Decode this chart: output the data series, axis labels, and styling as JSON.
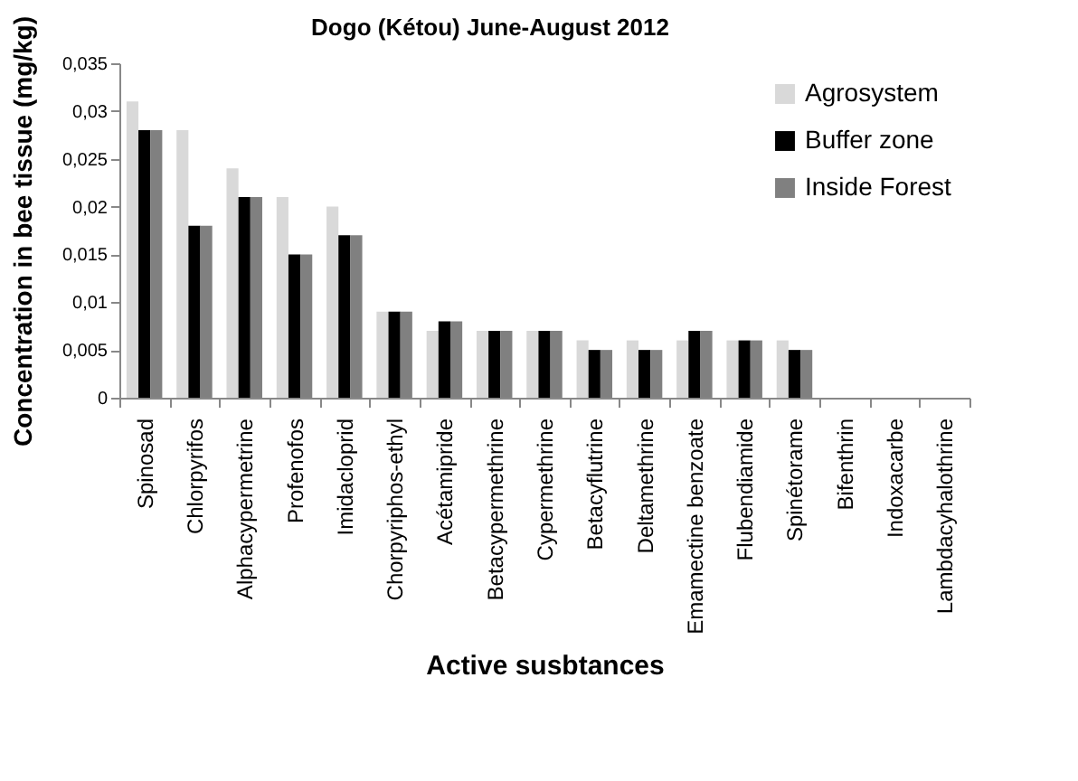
{
  "chart_data": {
    "type": "bar",
    "title": "Dogo (Kétou) June-August  2012",
    "xlabel": "Active susbtances",
    "ylabel": "Concentration in bee tissue (mg/kg)",
    "categories": [
      "Spinosad",
      "Chlorpyrifos",
      "Alphacypermetrine",
      "Profenofos",
      "Imidacloprid",
      "Chorpyriphos-ethyl",
      "Acétamipride",
      "Betacypermethrine",
      "Cypermethrine",
      "Betacyflutrine",
      "Deltamethrine",
      "Emamectine benzoate",
      "Flubendiamide",
      "Spinétorame",
      "Bifenthrin",
      "Indoxacarbe",
      "Lambdacyhalothrine"
    ],
    "series": [
      {
        "name": "Agrosystem",
        "color": "#d9d9d9",
        "values": [
          0.031,
          0.028,
          0.024,
          0.021,
          0.02,
          0.009,
          0.007,
          0.007,
          0.007,
          0.006,
          0.006,
          0.006,
          0.006,
          0.006,
          0,
          0,
          0
        ]
      },
      {
        "name": "Buffer zone",
        "color": "#000000",
        "values": [
          0.028,
          0.018,
          0.021,
          0.015,
          0.017,
          0.009,
          0.008,
          0.007,
          0.007,
          0.005,
          0.005,
          0.007,
          0.006,
          0.005,
          0,
          0,
          0
        ]
      },
      {
        "name": "Inside Forest",
        "color": "#808080",
        "values": [
          0.028,
          0.018,
          0.021,
          0.015,
          0.017,
          0.009,
          0.008,
          0.007,
          0.007,
          0.005,
          0.005,
          0.007,
          0.006,
          0.005,
          0,
          0,
          0
        ]
      }
    ],
    "ylim": [
      0,
      0.035
    ],
    "yticks": [
      {
        "value": 0,
        "label": "0"
      },
      {
        "value": 0.005,
        "label": "0,005"
      },
      {
        "value": 0.01,
        "label": "0,01"
      },
      {
        "value": 0.015,
        "label": "0,015"
      },
      {
        "value": 0.02,
        "label": "0,02"
      },
      {
        "value": 0.025,
        "label": "0,025"
      },
      {
        "value": 0.03,
        "label": "0,03"
      },
      {
        "value": 0.035,
        "label": "0,035"
      }
    ],
    "legend": "right",
    "grid": false
  }
}
